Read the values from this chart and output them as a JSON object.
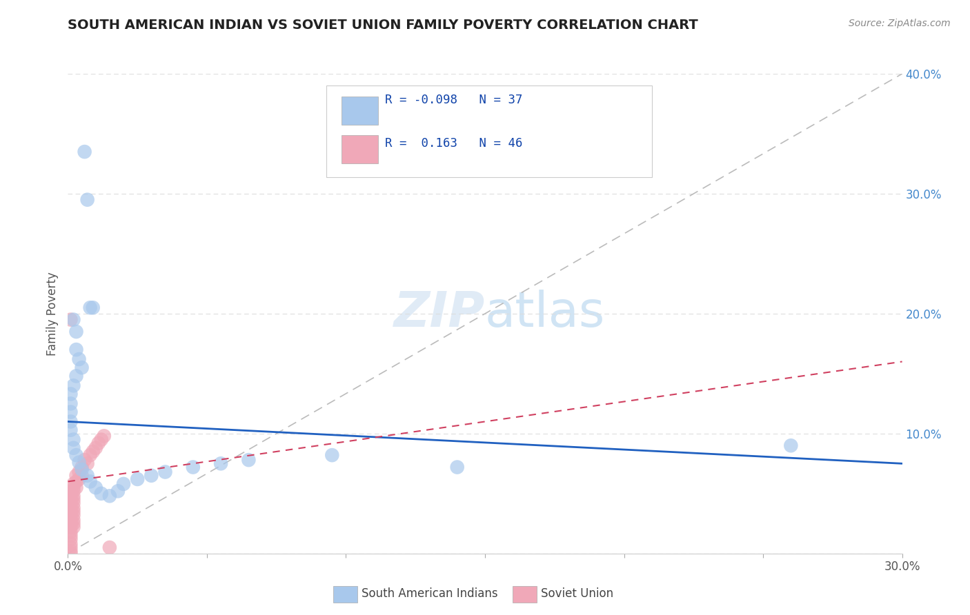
{
  "title": "SOUTH AMERICAN INDIAN VS SOVIET UNION FAMILY POVERTY CORRELATION CHART",
  "source": "Source: ZipAtlas.com",
  "ylabel": "Family Poverty",
  "xlim": [
    0.0,
    0.3
  ],
  "ylim": [
    0.0,
    0.4
  ],
  "color_blue": "#A8C8EC",
  "color_pink": "#F0A8B8",
  "line_blue": "#2060C0",
  "line_pink": "#D04060",
  "diag_color": "#BBBBBB",
  "background": "#FFFFFF",
  "blue_scatter": [
    [
      0.006,
      0.335
    ],
    [
      0.007,
      0.295
    ],
    [
      0.008,
      0.205
    ],
    [
      0.009,
      0.205
    ],
    [
      0.002,
      0.195
    ],
    [
      0.003,
      0.185
    ],
    [
      0.003,
      0.17
    ],
    [
      0.004,
      0.162
    ],
    [
      0.005,
      0.155
    ],
    [
      0.003,
      0.148
    ],
    [
      0.002,
      0.14
    ],
    [
      0.001,
      0.133
    ],
    [
      0.001,
      0.125
    ],
    [
      0.001,
      0.118
    ],
    [
      0.001,
      0.11
    ],
    [
      0.001,
      0.103
    ],
    [
      0.002,
      0.095
    ],
    [
      0.002,
      0.088
    ],
    [
      0.003,
      0.082
    ],
    [
      0.004,
      0.076
    ],
    [
      0.005,
      0.07
    ],
    [
      0.007,
      0.065
    ],
    [
      0.008,
      0.06
    ],
    [
      0.01,
      0.055
    ],
    [
      0.012,
      0.05
    ],
    [
      0.015,
      0.048
    ],
    [
      0.018,
      0.052
    ],
    [
      0.02,
      0.058
    ],
    [
      0.025,
      0.062
    ],
    [
      0.03,
      0.065
    ],
    [
      0.035,
      0.068
    ],
    [
      0.045,
      0.072
    ],
    [
      0.055,
      0.075
    ],
    [
      0.065,
      0.078
    ],
    [
      0.095,
      0.082
    ],
    [
      0.14,
      0.072
    ],
    [
      0.26,
      0.09
    ]
  ],
  "pink_scatter": [
    [
      0.001,
      0.195
    ],
    [
      0.001,
      0.052
    ],
    [
      0.001,
      0.048
    ],
    [
      0.001,
      0.045
    ],
    [
      0.001,
      0.042
    ],
    [
      0.001,
      0.038
    ],
    [
      0.001,
      0.035
    ],
    [
      0.001,
      0.032
    ],
    [
      0.001,
      0.028
    ],
    [
      0.001,
      0.025
    ],
    [
      0.001,
      0.022
    ],
    [
      0.001,
      0.018
    ],
    [
      0.001,
      0.015
    ],
    [
      0.001,
      0.012
    ],
    [
      0.001,
      0.008
    ],
    [
      0.001,
      0.005
    ],
    [
      0.001,
      0.002
    ],
    [
      0.001,
      0.0
    ],
    [
      0.002,
      0.058
    ],
    [
      0.002,
      0.055
    ],
    [
      0.002,
      0.052
    ],
    [
      0.002,
      0.048
    ],
    [
      0.002,
      0.045
    ],
    [
      0.002,
      0.042
    ],
    [
      0.002,
      0.038
    ],
    [
      0.002,
      0.035
    ],
    [
      0.002,
      0.032
    ],
    [
      0.002,
      0.028
    ],
    [
      0.002,
      0.025
    ],
    [
      0.002,
      0.022
    ],
    [
      0.003,
      0.065
    ],
    [
      0.003,
      0.06
    ],
    [
      0.003,
      0.055
    ],
    [
      0.004,
      0.068
    ],
    [
      0.004,
      0.062
    ],
    [
      0.005,
      0.072
    ],
    [
      0.005,
      0.065
    ],
    [
      0.006,
      0.078
    ],
    [
      0.007,
      0.075
    ],
    [
      0.008,
      0.082
    ],
    [
      0.009,
      0.085
    ],
    [
      0.01,
      0.088
    ],
    [
      0.011,
      0.092
    ],
    [
      0.012,
      0.095
    ],
    [
      0.013,
      0.098
    ],
    [
      0.015,
      0.005
    ]
  ],
  "blue_line_x": [
    0.0,
    0.3
  ],
  "blue_line_y": [
    0.11,
    0.075
  ],
  "pink_line_x": [
    0.0,
    0.3
  ],
  "pink_line_y": [
    0.06,
    0.16
  ]
}
